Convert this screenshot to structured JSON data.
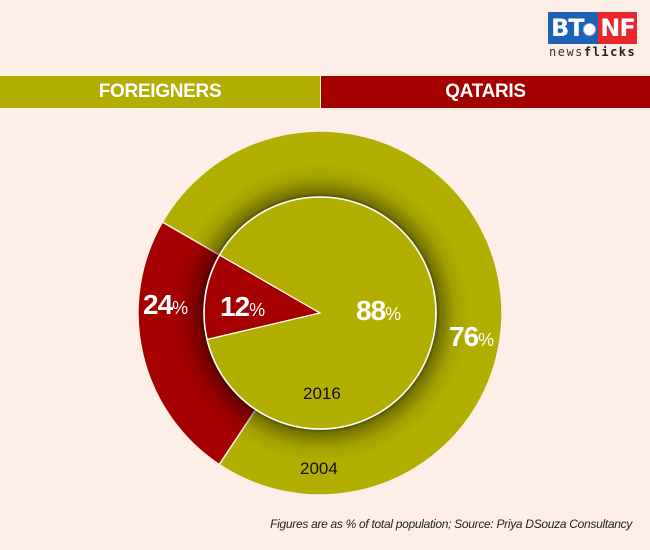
{
  "logo": {
    "left_text": "BT",
    "right_text": "NF",
    "sub_regular": "news",
    "sub_bold": "flicks"
  },
  "legend": {
    "foreigners": {
      "label": "FOREIGNERS",
      "color": "#b2ae00"
    },
    "qataris": {
      "label": "QATARIS",
      "color": "#a50000"
    }
  },
  "labels": {
    "outer_qataris_value": "24",
    "outer_foreigners_value": "76",
    "inner_qataris_value": "12",
    "inner_foreigners_value": "88",
    "pct_sign": "%",
    "inner_year": "2016",
    "outer_year": "2004"
  },
  "footnote": "Figures are as % of total population;  Source: Priya DSouza Consultancy",
  "chart_data": {
    "type": "pie",
    "title": "Qatar population composition",
    "subtitle": "Figures are as % of total population",
    "source": "Priya DSouza Consultancy",
    "categories": [
      "Foreigners",
      "Qataris"
    ],
    "colors": [
      "#b2ae00",
      "#a50000"
    ],
    "series": [
      {
        "name": "2004",
        "ring": "outer",
        "values": [
          76,
          24
        ]
      },
      {
        "name": "2016",
        "ring": "inner",
        "values": [
          88,
          12
        ]
      }
    ],
    "legend_position": "top",
    "grid": false
  }
}
